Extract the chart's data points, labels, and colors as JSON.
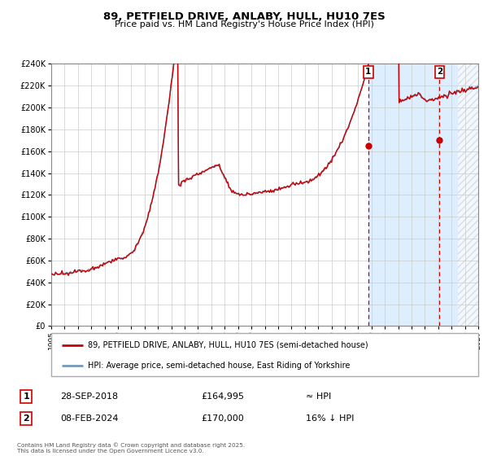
{
  "title": "89, PETFIELD DRIVE, ANLABY, HULL, HU10 7ES",
  "subtitle": "Price paid vs. HM Land Registry's House Price Index (HPI)",
  "legend_line1": "89, PETFIELD DRIVE, ANLABY, HULL, HU10 7ES (semi-detached house)",
  "legend_line2": "HPI: Average price, semi-detached house, East Riding of Yorkshire",
  "annotation1_label": "1",
  "annotation1_date": "28-SEP-2018",
  "annotation1_price": "£164,995",
  "annotation1_hpi": "≈ HPI",
  "annotation2_label": "2",
  "annotation2_date": "08-FEB-2024",
  "annotation2_price": "£170,000",
  "annotation2_hpi": "16% ↓ HPI",
  "footer": "Contains HM Land Registry data © Crown copyright and database right 2025.\nThis data is licensed under the Open Government Licence v3.0.",
  "hpi_line_color": "#7799bb",
  "price_line_color": "#cc0000",
  "marker_color": "#cc0000",
  "vline_color": "#cc0000",
  "shade_color": "#ddeeff",
  "hatch_color": "#cccccc",
  "bg_color": "#ffffff",
  "grid_color": "#cccccc",
  "point1_year": 2018.75,
  "point1_value": 164995,
  "point2_year": 2024.1,
  "point2_value": 170000,
  "xmin": 1995,
  "xmax": 2027,
  "ymin": 0,
  "ymax": 240000
}
